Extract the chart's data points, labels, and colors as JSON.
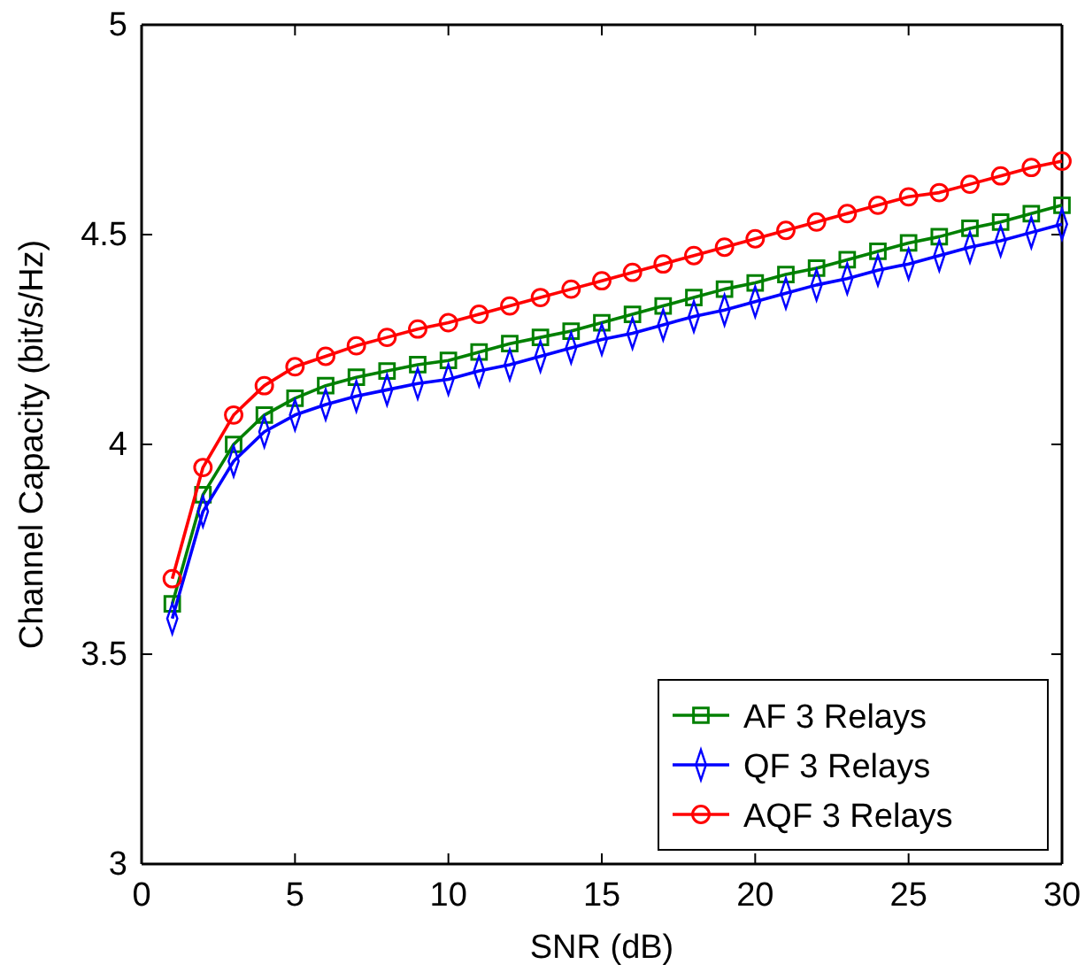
{
  "chart_data": {
    "type": "line",
    "xlabel": "SNR (dB)",
    "ylabel": "Channel Capacity (bit/s/Hz)",
    "x": [
      1,
      2,
      3,
      4,
      5,
      6,
      7,
      8,
      9,
      10,
      11,
      12,
      13,
      14,
      15,
      16,
      17,
      18,
      19,
      20,
      21,
      22,
      23,
      24,
      25,
      26,
      27,
      28,
      29,
      30
    ],
    "xlim": [
      0,
      30
    ],
    "xticks": [
      0,
      5,
      10,
      15,
      20,
      25,
      30
    ],
    "ylim": [
      3,
      5
    ],
    "yticks": [
      3,
      3.5,
      4,
      4.5,
      5
    ],
    "grid": false,
    "legend": "bottom right",
    "line_style": "solid",
    "series": [
      {
        "name": "AF 3 Relays",
        "color": "#008000",
        "marker": "square",
        "values": [
          3.62,
          3.88,
          4.0,
          4.07,
          4.11,
          4.14,
          4.16,
          4.175,
          4.19,
          4.2,
          4.22,
          4.24,
          4.255,
          4.27,
          4.29,
          4.31,
          4.33,
          4.35,
          4.37,
          4.385,
          4.405,
          4.42,
          4.44,
          4.46,
          4.48,
          4.495,
          4.515,
          4.53,
          4.55,
          4.57
        ]
      },
      {
        "name": "QF 3 Relays",
        "color": "#0000ff",
        "marker": "diamond",
        "values": [
          3.585,
          3.84,
          3.96,
          4.03,
          4.07,
          4.095,
          4.115,
          4.13,
          4.145,
          4.155,
          4.175,
          4.19,
          4.21,
          4.23,
          4.25,
          4.265,
          4.285,
          4.305,
          4.32,
          4.34,
          4.36,
          4.38,
          4.395,
          4.415,
          4.43,
          4.45,
          4.47,
          4.485,
          4.505,
          4.525
        ]
      },
      {
        "name": "AQF 3 Relays",
        "color": "#ff0000",
        "marker": "circle",
        "values": [
          3.68,
          3.945,
          4.07,
          4.14,
          4.185,
          4.21,
          4.235,
          4.255,
          4.275,
          4.29,
          4.31,
          4.33,
          4.35,
          4.37,
          4.39,
          4.41,
          4.43,
          4.45,
          4.47,
          4.49,
          4.51,
          4.53,
          4.55,
          4.57,
          4.59,
          4.6,
          4.62,
          4.64,
          4.66,
          4.675
        ]
      }
    ]
  }
}
